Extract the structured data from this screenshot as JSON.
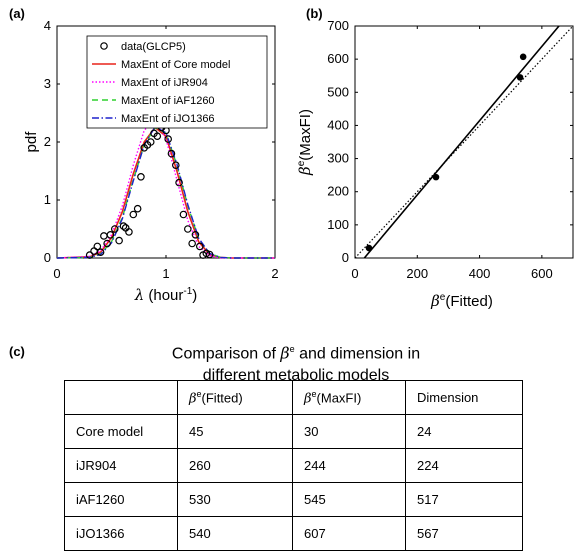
{
  "panel_labels": {
    "a": "(a)",
    "b": "(b)",
    "c": "(c)"
  },
  "chart_data": [
    {
      "type": "line",
      "panel": "(a)",
      "xlabel_symbol": "λ",
      "xlabel_text": " (hour",
      "xlabel_sup": "-1",
      "xlabel_close": ")",
      "ylabel": "pdf",
      "xlim": [
        0,
        2
      ],
      "ylim": [
        0,
        4
      ],
      "xticks": [
        "0",
        "1",
        "2"
      ],
      "yticks": [
        "0",
        "1",
        "2",
        "3",
        "4"
      ],
      "legend_position": "top-right",
      "series": [
        {
          "name": "data(GLCP5)",
          "kind": "scatter",
          "marker": "open-circle",
          "color": "#000000",
          "x": [
            0.3,
            0.34,
            0.37,
            0.4,
            0.43,
            0.46,
            0.49,
            0.53,
            0.57,
            0.61,
            0.63,
            0.66,
            0.7,
            0.74,
            0.77,
            0.8,
            0.83,
            0.86,
            0.89,
            0.92,
            0.96,
            1.0,
            1.02,
            1.05,
            1.09,
            1.12,
            1.16,
            1.2,
            1.24,
            1.27,
            1.31,
            1.34,
            1.37,
            1.4
          ],
          "y": [
            0.05,
            0.12,
            0.2,
            0.1,
            0.38,
            0.25,
            0.4,
            0.5,
            0.3,
            0.55,
            0.52,
            0.45,
            0.75,
            0.85,
            1.4,
            1.9,
            1.95,
            2.0,
            2.15,
            2.1,
            2.25,
            2.2,
            2.05,
            1.8,
            1.6,
            1.3,
            0.75,
            0.5,
            0.25,
            0.4,
            0.2,
            0.05,
            0.08,
            0.06
          ]
        },
        {
          "name": "MaxEnt of Core model",
          "kind": "line",
          "color": "#e8241a",
          "dash": "",
          "width": 1.6,
          "x": [
            0,
            0.3,
            0.4,
            0.5,
            0.6,
            0.7,
            0.8,
            0.9,
            1.0,
            1.1,
            1.2,
            1.3,
            1.4,
            1.5,
            1.6,
            2.0
          ],
          "y": [
            0,
            0.02,
            0.1,
            0.35,
            0.8,
            1.45,
            2.0,
            2.25,
            2.1,
            1.5,
            0.8,
            0.28,
            0.06,
            0.01,
            0,
            0
          ]
        },
        {
          "name": "MaxEnt of iJR904",
          "kind": "line",
          "color": "#ff00ff",
          "dash": "1.5,2",
          "width": 1.4,
          "x": [
            0,
            0.3,
            0.4,
            0.5,
            0.6,
            0.7,
            0.8,
            0.9,
            1.0,
            1.1,
            1.2,
            1.3,
            1.4,
            1.5,
            2.0
          ],
          "y": [
            0,
            0.03,
            0.12,
            0.4,
            0.9,
            1.6,
            2.2,
            2.4,
            2.05,
            1.35,
            0.65,
            0.2,
            0.04,
            0,
            0
          ]
        },
        {
          "name": "MaxEnt of iAF1260",
          "kind": "line",
          "color": "#2ed12e",
          "dash": "6,4",
          "width": 1.4,
          "x": [
            0,
            0.3,
            0.4,
            0.5,
            0.6,
            0.7,
            0.8,
            0.9,
            1.0,
            1.1,
            1.2,
            1.3,
            1.4,
            1.5,
            1.6,
            2.0
          ],
          "y": [
            0,
            0.01,
            0.07,
            0.28,
            0.7,
            1.35,
            1.95,
            2.25,
            2.15,
            1.6,
            0.9,
            0.33,
            0.08,
            0.01,
            0,
            0
          ]
        },
        {
          "name": "MaxEnt of iJO1366",
          "kind": "line",
          "color": "#1e22cc",
          "dash": "7,2.5,1.5,2.5",
          "width": 1.4,
          "x": [
            0,
            0.3,
            0.4,
            0.5,
            0.6,
            0.7,
            0.8,
            0.9,
            1.0,
            1.1,
            1.2,
            1.3,
            1.4,
            1.5,
            1.6,
            2.0
          ],
          "y": [
            0,
            0.01,
            0.06,
            0.26,
            0.68,
            1.33,
            1.95,
            2.26,
            2.16,
            1.62,
            0.92,
            0.34,
            0.08,
            0.01,
            0,
            0
          ]
        }
      ]
    },
    {
      "type": "scatter",
      "panel": "(b)",
      "xlabel_symbol": "β",
      "xlabel_sup": "e",
      "xlabel_text": "(Fitted)",
      "ylabel_symbol": "β",
      "ylabel_sup": "e",
      "ylabel_text": "(MaxFI)",
      "xlim": [
        0,
        700
      ],
      "ylim": [
        0,
        700
      ],
      "xticks": [
        "0",
        "200",
        "400",
        "600"
      ],
      "yticks": [
        "0",
        "100",
        "200",
        "300",
        "400",
        "500",
        "600",
        "700"
      ],
      "points": {
        "x": [
          45,
          260,
          530,
          540
        ],
        "y": [
          30,
          244,
          545,
          607
        ]
      },
      "fit_line": {
        "style": "solid",
        "x": [
          30,
          655
        ],
        "y": [
          0,
          700
        ]
      },
      "identity_line": {
        "style": "dotted",
        "x": [
          0,
          700
        ],
        "y": [
          0,
          700
        ]
      }
    }
  ],
  "table": {
    "title_line1_before": "Comparison of ",
    "title_beta": "β",
    "title_sup": "e",
    "title_line1_after": " and dimension in",
    "title_line2": "different metabolic models",
    "header": {
      "col0": "",
      "col1_sup": "e",
      "col1_text": "(Fitted)",
      "col2_sup": "e",
      "col2_text": "(MaxFI)",
      "col3": "Dimension",
      "beta": "β"
    },
    "rows": [
      [
        "Core model",
        "45",
        "30",
        "24"
      ],
      [
        "iJR904",
        "260",
        "244",
        "224"
      ],
      [
        "iAF1260",
        "530",
        "545",
        "517"
      ],
      [
        "iJO1366",
        "540",
        "607",
        "567"
      ]
    ]
  }
}
